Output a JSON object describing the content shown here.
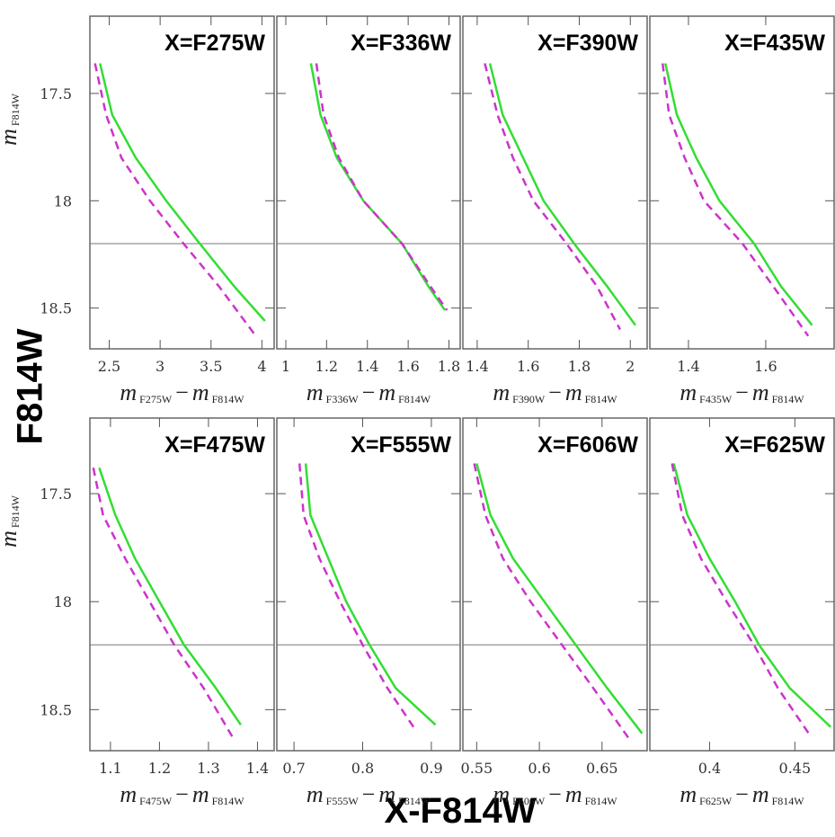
{
  "figure": {
    "ylabel": "F814W",
    "xlabel": "X-F814W"
  },
  "chart_data": [
    {
      "type": "line",
      "title": "X=F275W",
      "xlim": [
        2.31,
        4.12
      ],
      "xticks": [
        2.5,
        3,
        3.5,
        4
      ],
      "ylim": [
        18.69,
        17.14
      ],
      "yticks": [
        17.5,
        18,
        18.5
      ],
      "show_yticklabels": true,
      "hline": 18.2,
      "ylabel": [
        {
          "base": "m",
          "sub": "F814W"
        }
      ],
      "xlabel": [
        {
          "base": "m",
          "sub": "F275W"
        },
        {
          "base": "−"
        },
        {
          "base": "m",
          "sub": "F814W"
        }
      ],
      "series": [
        {
          "color": "#33dd33",
          "dash": false,
          "x": [
            2.41,
            2.53,
            2.76,
            3.06,
            3.39,
            3.73,
            4.03
          ],
          "values": [
            17.36,
            17.6,
            17.8,
            18.0,
            18.2,
            18.4,
            18.56
          ]
        },
        {
          "color": "#cc33cc",
          "dash": true,
          "x": [
            2.36,
            2.47,
            2.62,
            2.9,
            3.23,
            3.58,
            3.94
          ],
          "values": [
            17.36,
            17.6,
            17.8,
            18.0,
            18.2,
            18.4,
            18.63
          ]
        }
      ]
    },
    {
      "type": "line",
      "title": "X=F336W",
      "xlim": [
        0.956,
        1.855
      ],
      "xticks": [
        1,
        1.2,
        1.4,
        1.6,
        1.8
      ],
      "ylim": [
        18.69,
        17.14
      ],
      "yticks": [
        17.5,
        18,
        18.5
      ],
      "show_yticklabels": false,
      "hline": 18.2,
      "xlabel": [
        {
          "base": "m",
          "sub": "F336W"
        },
        {
          "base": "−"
        },
        {
          "base": "m",
          "sub": "F814W"
        }
      ],
      "series": [
        {
          "color": "#33dd33",
          "dash": false,
          "x": [
            1.123,
            1.17,
            1.25,
            1.38,
            1.57,
            1.7,
            1.78
          ],
          "values": [
            17.36,
            17.6,
            17.8,
            18.0,
            18.2,
            18.4,
            18.51
          ]
        },
        {
          "color": "#cc33cc",
          "dash": true,
          "x": [
            1.15,
            1.185,
            1.26,
            1.38,
            1.57,
            1.71,
            1.79
          ],
          "values": [
            17.36,
            17.6,
            17.8,
            18.0,
            18.2,
            18.4,
            18.51
          ]
        }
      ]
    },
    {
      "type": "line",
      "title": "X=F390W",
      "xlim": [
        1.344,
        2.066
      ],
      "xticks": [
        1.4,
        1.6,
        1.8,
        2
      ],
      "ylim": [
        18.69,
        17.14
      ],
      "yticks": [
        17.5,
        18,
        18.5
      ],
      "show_yticklabels": false,
      "hline": 18.2,
      "xlabel": [
        {
          "base": "m",
          "sub": "F390W"
        },
        {
          "base": "−"
        },
        {
          "base": "m",
          "sub": "F814W"
        }
      ],
      "series": [
        {
          "color": "#33dd33",
          "dash": false,
          "x": [
            1.45,
            1.5,
            1.58,
            1.66,
            1.78,
            1.91,
            2.02
          ],
          "values": [
            17.36,
            17.6,
            17.8,
            18.0,
            18.2,
            18.4,
            18.58
          ]
        },
        {
          "color": "#cc33cc",
          "dash": true,
          "x": [
            1.43,
            1.48,
            1.54,
            1.62,
            1.75,
            1.87,
            1.96
          ],
          "values": [
            17.36,
            17.6,
            17.8,
            18.0,
            18.2,
            18.4,
            18.6
          ]
        }
      ]
    },
    {
      "type": "line",
      "title": "X=F435W",
      "xlim": [
        1.3,
        1.777
      ],
      "xticks": [
        1.4,
        1.6
      ],
      "ylim": [
        18.69,
        17.14
      ],
      "yticks": [
        17.5,
        18,
        18.5
      ],
      "show_yticklabels": false,
      "hline": 18.2,
      "xlabel": [
        {
          "base": "m",
          "sub": "F435W"
        },
        {
          "base": "−"
        },
        {
          "base": "m",
          "sub": "F814W"
        }
      ],
      "series": [
        {
          "color": "#33dd33",
          "dash": false,
          "x": [
            1.34,
            1.37,
            1.42,
            1.48,
            1.57,
            1.64,
            1.72
          ],
          "values": [
            17.36,
            17.6,
            17.8,
            18.0,
            18.2,
            18.4,
            18.58
          ]
        },
        {
          "color": "#cc33cc",
          "dash": true,
          "x": [
            1.333,
            1.35,
            1.39,
            1.44,
            1.54,
            1.62,
            1.71
          ],
          "values": [
            17.36,
            17.6,
            17.8,
            18.0,
            18.2,
            18.4,
            18.63
          ]
        }
      ]
    },
    {
      "type": "line",
      "title": "X=F475W",
      "xlim": [
        1.058,
        1.434
      ],
      "xticks": [
        1.1,
        1.2,
        1.3,
        1.4
      ],
      "ylim": [
        18.69,
        17.15
      ],
      "yticks": [
        17.5,
        18,
        18.5
      ],
      "show_yticklabels": true,
      "hline": 18.2,
      "ylabel": [
        {
          "base": "m",
          "sub": "F814W"
        }
      ],
      "xlabel": [
        {
          "base": "m",
          "sub": "F475W"
        },
        {
          "base": "−"
        },
        {
          "base": "m",
          "sub": "F814W"
        }
      ],
      "series": [
        {
          "color": "#33dd33",
          "dash": false,
          "x": [
            1.077,
            1.11,
            1.15,
            1.2,
            1.25,
            1.315,
            1.366
          ],
          "values": [
            17.38,
            17.6,
            17.8,
            18.0,
            18.2,
            18.4,
            18.57
          ]
        },
        {
          "color": "#cc33cc",
          "dash": true,
          "x": [
            1.065,
            1.085,
            1.13,
            1.18,
            1.23,
            1.29,
            1.35
          ],
          "values": [
            17.38,
            17.6,
            17.8,
            18.0,
            18.2,
            18.4,
            18.63
          ]
        }
      ]
    },
    {
      "type": "line",
      "title": "X=F555W",
      "xlim": [
        0.675,
        0.942
      ],
      "xticks": [
        0.7,
        0.8,
        0.9
      ],
      "ylim": [
        18.69,
        17.15
      ],
      "yticks": [
        17.5,
        18,
        18.5
      ],
      "show_yticklabels": false,
      "hline": 18.2,
      "xlabel": [
        {
          "base": "m",
          "sub": "F555W"
        },
        {
          "base": "−"
        },
        {
          "base": "m",
          "sub": "F814W"
        }
      ],
      "series": [
        {
          "color": "#33dd33",
          "dash": false,
          "x": [
            0.717,
            0.724,
            0.75,
            0.776,
            0.81,
            0.848,
            0.906
          ],
          "values": [
            17.36,
            17.6,
            17.8,
            18.0,
            18.2,
            18.4,
            18.57
          ]
        },
        {
          "color": "#cc33cc",
          "dash": true,
          "x": [
            0.708,
            0.714,
            0.737,
            0.767,
            0.8,
            0.836,
            0.874
          ],
          "values": [
            17.36,
            17.6,
            17.8,
            18.0,
            18.2,
            18.4,
            18.58
          ]
        }
      ]
    },
    {
      "type": "line",
      "title": "X=F606W",
      "xlim": [
        0.539,
        0.686
      ],
      "xticks": [
        0.55,
        0.6,
        0.65
      ],
      "ylim": [
        18.69,
        17.15
      ],
      "yticks": [
        17.5,
        18,
        18.5
      ],
      "show_yticklabels": false,
      "hline": 18.2,
      "xlabel": [
        {
          "base": "m",
          "sub": "F606W"
        },
        {
          "base": "−"
        },
        {
          "base": "m",
          "sub": "F814W"
        }
      ],
      "series": [
        {
          "color": "#33dd33",
          "dash": false,
          "x": [
            0.55,
            0.561,
            0.579,
            0.604,
            0.629,
            0.654,
            0.682
          ],
          "values": [
            17.36,
            17.6,
            17.8,
            18.0,
            18.2,
            18.4,
            18.61
          ]
        },
        {
          "color": "#cc33cc",
          "dash": true,
          "x": [
            0.548,
            0.557,
            0.571,
            0.593,
            0.618,
            0.643,
            0.671
          ],
          "values": [
            17.36,
            17.6,
            17.8,
            18.0,
            18.2,
            18.4,
            18.63
          ]
        }
      ]
    },
    {
      "type": "line",
      "title": "X=F625W",
      "xlim": [
        0.365,
        0.473
      ],
      "xticks": [
        0.4,
        0.45
      ],
      "ylim": [
        18.69,
        17.15
      ],
      "yticks": [
        17.5,
        18,
        18.5
      ],
      "show_yticklabels": false,
      "hline": 18.2,
      "xlabel": [
        {
          "base": "m",
          "sub": "F625W"
        },
        {
          "base": "−"
        },
        {
          "base": "m",
          "sub": "F814W"
        }
      ],
      "series": [
        {
          "color": "#33dd33",
          "dash": false,
          "x": [
            0.379,
            0.387,
            0.4,
            0.415,
            0.429,
            0.447,
            0.471
          ],
          "values": [
            17.36,
            17.6,
            17.8,
            18.0,
            18.2,
            18.4,
            18.58
          ]
        },
        {
          "color": "#cc33cc",
          "dash": true,
          "x": [
            0.378,
            0.384,
            0.395,
            0.41,
            0.426,
            0.44,
            0.459
          ],
          "values": [
            17.36,
            17.6,
            17.8,
            18.0,
            18.2,
            18.4,
            18.62
          ]
        }
      ]
    }
  ]
}
